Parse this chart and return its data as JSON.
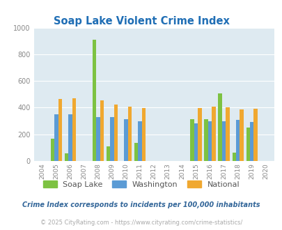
{
  "title": "Soap Lake Violent Crime Index",
  "years": [
    2004,
    2005,
    2006,
    2007,
    2008,
    2009,
    2010,
    2011,
    2012,
    2013,
    2014,
    2015,
    2016,
    2017,
    2018,
    2019,
    2020
  ],
  "soap_lake": [
    0,
    165,
    55,
    0,
    910,
    110,
    0,
    135,
    0,
    0,
    0,
    315,
    315,
    505,
    65,
    250,
    0
  ],
  "washington": [
    0,
    350,
    350,
    0,
    330,
    330,
    315,
    300,
    0,
    0,
    0,
    280,
    300,
    300,
    310,
    295,
    0
  ],
  "national": [
    0,
    465,
    470,
    0,
    455,
    425,
    405,
    395,
    0,
    0,
    0,
    395,
    405,
    400,
    385,
    390,
    0
  ],
  "soap_lake_color": "#7dc242",
  "washington_color": "#5b9bd5",
  "national_color": "#f0a830",
  "bg_color": "#deeaf1",
  "title_color": "#1f6eb5",
  "ylim": [
    0,
    1000
  ],
  "yticks": [
    0,
    200,
    400,
    600,
    800,
    1000
  ],
  "footnote1": "Crime Index corresponds to incidents per 100,000 inhabitants",
  "footnote2": "© 2025 CityRating.com - https://www.cityrating.com/crime-statistics/",
  "legend_labels": [
    "Soap Lake",
    "Washington",
    "National"
  ],
  "bar_width": 0.27
}
